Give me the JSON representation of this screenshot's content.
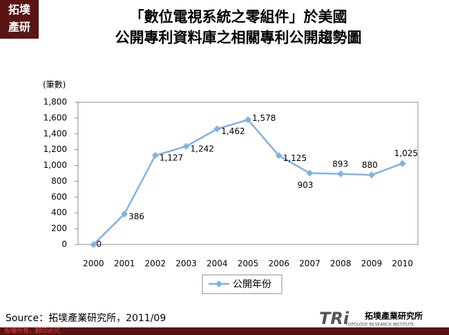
{
  "logo": {
    "line1": "拓墣",
    "line2": "產研"
  },
  "chart_data": {
    "type": "line",
    "title": [
      "「數位電視系統之零組件」於美國",
      "公開專利資料庫之相關專利公開趨勢圖"
    ],
    "y_label": "(筆數)",
    "categories": [
      "2000",
      "2001",
      "2002",
      "2003",
      "2004",
      "2005",
      "2006",
      "2007",
      "2008",
      "2009",
      "2010"
    ],
    "series": [
      {
        "name": "公開年份",
        "color": "#7fb2e6",
        "values": [
          0,
          386,
          1127,
          1242,
          1462,
          1578,
          1125,
          903,
          893,
          880,
          1025
        ],
        "value_labels": [
          "0",
          "386",
          "1,127",
          "1,242",
          "1,462",
          "1,578",
          "1,125",
          "903",
          "893",
          "880",
          "1,025"
        ]
      }
    ],
    "ylim": [
      0,
      1800
    ],
    "yticks": [
      0,
      200,
      400,
      600,
      800,
      {
        "value": 1000,
        "label": "1,000"
      },
      {
        "value": 1200,
        "label": "1,200"
      },
      {
        "value": 1400,
        "label": "1,400"
      },
      {
        "value": 1600,
        "label": "1,600"
      },
      {
        "value": 1800,
        "label": "1,800"
      }
    ]
  },
  "source": "Source：拓墣產業研究所，2011/09",
  "footer": {
    "copyright": "版權所有，翻印必究",
    "brand": "TRi",
    "org": "拓墣產業研究所",
    "org_en": "TOPOLOGY RESEARCH INSTITUTE"
  }
}
